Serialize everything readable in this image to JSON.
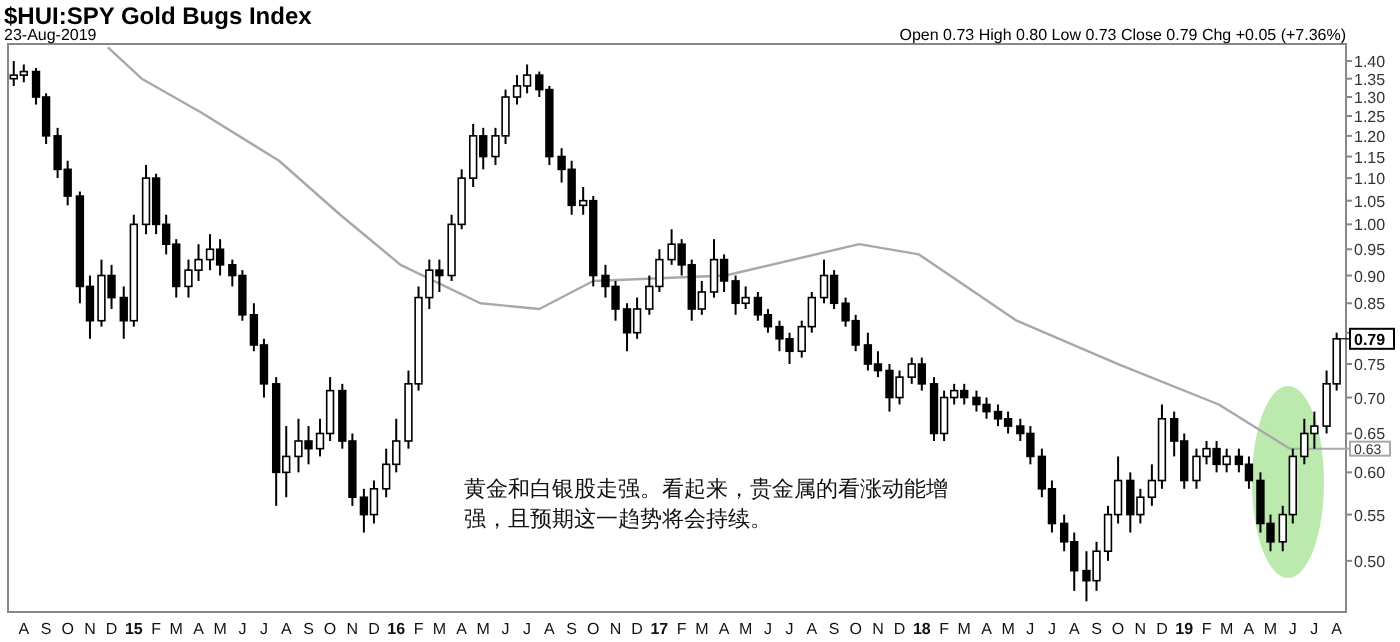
{
  "chart_data": {
    "type": "candlestick",
    "title": "$HUI:SPY Gold Bugs Index",
    "subtitle": "23-Aug-2019",
    "annotations": [
      "Open 0.73 High 0.80 Low 0.73 Close 0.79 Chg +0.05 (+7.36%)",
      "黄金和白银股走强。看起来，贵金属的看涨动能增强，且预期这一趋势将会持续。",
      {
        "text": "0.79",
        "x": "2019-08-15",
        "y": 0.79
      }
    ],
    "log": "y",
    "ylim": [
      0.45,
      1.45
    ],
    "yticks": [
      {
        "value": 0.5,
        "label": "0.50"
      },
      {
        "value": 0.55,
        "label": "0.55"
      },
      {
        "value": 0.6,
        "label": "0.60"
      },
      {
        "value": 0.65,
        "label": "0.65"
      },
      {
        "value": 0.7,
        "label": "0.70"
      },
      {
        "value": 0.75,
        "label": "0.75"
      },
      {
        "value": 0.8,
        "label": null
      },
      {
        "value": 0.85,
        "label": "0.85"
      },
      {
        "value": 0.9,
        "label": "0.90"
      },
      {
        "value": 0.95,
        "label": "0.95"
      },
      {
        "value": 1.0,
        "label": "1.00"
      },
      {
        "value": 1.05,
        "label": "1.05"
      },
      {
        "value": 1.1,
        "label": "1.10"
      },
      {
        "value": 1.15,
        "label": "1.15"
      },
      {
        "value": 1.2,
        "label": "1.20"
      },
      {
        "value": 1.25,
        "label": "1.25"
      },
      {
        "value": 1.3,
        "label": "1.30"
      },
      {
        "value": 1.35,
        "label": "1.35"
      },
      {
        "value": 1.4,
        "label": "1.40"
      }
    ],
    "xlim": [
      "2014-07-24",
      "2019-08-28"
    ],
    "xticks": [
      {
        "value": "2014-08-15",
        "label": "A"
      },
      {
        "value": "2014-09-15",
        "label": "S"
      },
      {
        "value": "2014-10-15",
        "label": "O"
      },
      {
        "value": "2014-11-15",
        "label": "N"
      },
      {
        "value": "2014-12-15",
        "label": "D"
      },
      {
        "value": "2015-01-15",
        "label": "15"
      },
      {
        "value": "2015-02-15",
        "label": "F"
      },
      {
        "value": "2015-03-15",
        "label": "M"
      },
      {
        "value": "2015-04-15",
        "label": "A"
      },
      {
        "value": "2015-05-15",
        "label": "M"
      },
      {
        "value": "2015-06-15",
        "label": "J"
      },
      {
        "value": "2015-07-15",
        "label": "J"
      },
      {
        "value": "2015-08-15",
        "label": "A"
      },
      {
        "value": "2015-09-15",
        "label": "S"
      },
      {
        "value": "2015-10-15",
        "label": "O"
      },
      {
        "value": "2015-11-15",
        "label": "N"
      },
      {
        "value": "2015-12-15",
        "label": "D"
      },
      {
        "value": "2016-01-15",
        "label": "16"
      },
      {
        "value": "2016-02-15",
        "label": "F"
      },
      {
        "value": "2016-03-15",
        "label": "M"
      },
      {
        "value": "2016-04-15",
        "label": "A"
      },
      {
        "value": "2016-05-15",
        "label": "M"
      },
      {
        "value": "2016-06-15",
        "label": "J"
      },
      {
        "value": "2016-07-15",
        "label": "J"
      },
      {
        "value": "2016-08-15",
        "label": "A"
      },
      {
        "value": "2016-09-15",
        "label": "S"
      },
      {
        "value": "2016-10-15",
        "label": "O"
      },
      {
        "value": "2016-11-15",
        "label": "N"
      },
      {
        "value": "2016-12-15",
        "label": "D"
      },
      {
        "value": "2017-01-15",
        "label": "17"
      },
      {
        "value": "2017-02-15",
        "label": "F"
      },
      {
        "value": "2017-03-15",
        "label": "M"
      },
      {
        "value": "2017-04-15",
        "label": "A"
      },
      {
        "value": "2017-05-15",
        "label": "M"
      },
      {
        "value": "2017-06-15",
        "label": "J"
      },
      {
        "value": "2017-07-15",
        "label": "J"
      },
      {
        "value": "2017-08-15",
        "label": "A"
      },
      {
        "value": "2017-09-15",
        "label": "S"
      },
      {
        "value": "2017-10-15",
        "label": "O"
      },
      {
        "value": "2017-11-15",
        "label": "N"
      },
      {
        "value": "2017-12-15",
        "label": "D"
      },
      {
        "value": "2018-01-15",
        "label": "18"
      },
      {
        "value": "2018-02-15",
        "label": "F"
      },
      {
        "value": "2018-03-15",
        "label": "M"
      },
      {
        "value": "2018-04-15",
        "label": "A"
      },
      {
        "value": "2018-05-15",
        "label": "M"
      },
      {
        "value": "2018-06-15",
        "label": "J"
      },
      {
        "value": "2018-07-15",
        "label": "J"
      },
      {
        "value": "2018-08-15",
        "label": "A"
      },
      {
        "value": "2018-09-15",
        "label": "S"
      },
      {
        "value": "2018-10-15",
        "label": "O"
      },
      {
        "value": "2018-11-15",
        "label": "N"
      },
      {
        "value": "2018-12-15",
        "label": "D"
      },
      {
        "value": "2019-01-15",
        "label": "19"
      },
      {
        "value": "2019-02-15",
        "label": "F"
      },
      {
        "value": "2019-03-15",
        "label": "M"
      },
      {
        "value": "2019-04-15",
        "label": "A"
      },
      {
        "value": "2019-05-15",
        "label": "M"
      },
      {
        "value": "2019-06-15",
        "label": "J"
      },
      {
        "value": "2019-07-15",
        "label": "J"
      },
      {
        "value": "2019-08-15",
        "label": "A"
      }
    ],
    "series": [
      {
        "type": "candlestick",
        "color": "#000000",
        "x": [
          "2014-08-01",
          "2014-08-15",
          "2014-09-01",
          "2014-09-15",
          "2014-10-01",
          "2014-10-15",
          "2014-11-01",
          "2014-11-15",
          "2014-12-01",
          "2014-12-15",
          "2015-01-01",
          "2015-01-15",
          "2015-02-01",
          "2015-02-15",
          "2015-03-01",
          "2015-03-15",
          "2015-04-01",
          "2015-04-15",
          "2015-05-01",
          "2015-05-15",
          "2015-06-01",
          "2015-06-15",
          "2015-07-01",
          "2015-07-15",
          "2015-08-01",
          "2015-08-15",
          "2015-09-01",
          "2015-09-15",
          "2015-10-01",
          "2015-10-15",
          "2015-11-01",
          "2015-11-15",
          "2015-12-01",
          "2015-12-15",
          "2016-01-01",
          "2016-01-15",
          "2016-02-01",
          "2016-02-15",
          "2016-03-01",
          "2016-03-15",
          "2016-04-01",
          "2016-04-15",
          "2016-05-01",
          "2016-05-15",
          "2016-06-01",
          "2016-06-15",
          "2016-07-01",
          "2016-07-15",
          "2016-08-01",
          "2016-08-15",
          "2016-09-01",
          "2016-09-15",
          "2016-10-01",
          "2016-10-15",
          "2016-11-01",
          "2016-11-15",
          "2016-12-01",
          "2016-12-15",
          "2017-01-01",
          "2017-01-15",
          "2017-02-01",
          "2017-02-15",
          "2017-03-01",
          "2017-03-15",
          "2017-04-01",
          "2017-04-15",
          "2017-05-01",
          "2017-05-15",
          "2017-06-01",
          "2017-06-15",
          "2017-07-01",
          "2017-07-15",
          "2017-08-01",
          "2017-08-15",
          "2017-09-01",
          "2017-09-15",
          "2017-10-01",
          "2017-10-15",
          "2017-11-01",
          "2017-11-15",
          "2017-12-01",
          "2017-12-15",
          "2018-01-01",
          "2018-01-15",
          "2018-02-01",
          "2018-02-15",
          "2018-03-01",
          "2018-03-15",
          "2018-04-01",
          "2018-04-15",
          "2018-05-01",
          "2018-05-15",
          "2018-06-01",
          "2018-06-15",
          "2018-07-01",
          "2018-07-15",
          "2018-08-01",
          "2018-08-15",
          "2018-09-01",
          "2018-09-15",
          "2018-10-01",
          "2018-10-15",
          "2018-11-01",
          "2018-11-15",
          "2018-12-01",
          "2018-12-15",
          "2019-01-01",
          "2019-01-15",
          "2019-02-01",
          "2019-02-15",
          "2019-03-01",
          "2019-03-15",
          "2019-04-01",
          "2019-04-15",
          "2019-05-01",
          "2019-05-15",
          "2019-06-01",
          "2019-06-15",
          "2019-07-01",
          "2019-07-15",
          "2019-08-01",
          "2019-08-15"
        ],
        "ohlc": [
          [
            1.35,
            1.4,
            1.33,
            1.36
          ],
          [
            1.36,
            1.39,
            1.34,
            1.37
          ],
          [
            1.37,
            1.38,
            1.28,
            1.3
          ],
          [
            1.3,
            1.31,
            1.18,
            1.2
          ],
          [
            1.2,
            1.22,
            1.1,
            1.12
          ],
          [
            1.12,
            1.14,
            1.04,
            1.06
          ],
          [
            1.06,
            1.07,
            0.85,
            0.88
          ],
          [
            0.88,
            0.9,
            0.79,
            0.82
          ],
          [
            0.82,
            0.93,
            0.81,
            0.9
          ],
          [
            0.9,
            0.92,
            0.84,
            0.86
          ],
          [
            0.86,
            0.88,
            0.79,
            0.82
          ],
          [
            0.82,
            1.02,
            0.81,
            1.0
          ],
          [
            1.0,
            1.13,
            0.98,
            1.1
          ],
          [
            1.1,
            1.11,
            0.98,
            1.0
          ],
          [
            1.0,
            1.02,
            0.94,
            0.96
          ],
          [
            0.96,
            0.97,
            0.86,
            0.88
          ],
          [
            0.88,
            0.93,
            0.86,
            0.91
          ],
          [
            0.91,
            0.96,
            0.89,
            0.93
          ],
          [
            0.93,
            0.98,
            0.91,
            0.95
          ],
          [
            0.95,
            0.97,
            0.9,
            0.92
          ],
          [
            0.92,
            0.93,
            0.88,
            0.9
          ],
          [
            0.9,
            0.91,
            0.82,
            0.83
          ],
          [
            0.83,
            0.85,
            0.77,
            0.78
          ],
          [
            0.78,
            0.79,
            0.7,
            0.72
          ],
          [
            0.72,
            0.73,
            0.56,
            0.6
          ],
          [
            0.6,
            0.66,
            0.57,
            0.62
          ],
          [
            0.62,
            0.67,
            0.6,
            0.64
          ],
          [
            0.64,
            0.66,
            0.61,
            0.63
          ],
          [
            0.63,
            0.67,
            0.62,
            0.65
          ],
          [
            0.65,
            0.73,
            0.64,
            0.71
          ],
          [
            0.71,
            0.72,
            0.63,
            0.64
          ],
          [
            0.64,
            0.65,
            0.56,
            0.57
          ],
          [
            0.57,
            0.58,
            0.53,
            0.55
          ],
          [
            0.55,
            0.59,
            0.54,
            0.58
          ],
          [
            0.58,
            0.63,
            0.57,
            0.61
          ],
          [
            0.61,
            0.67,
            0.6,
            0.64
          ],
          [
            0.64,
            0.74,
            0.63,
            0.72
          ],
          [
            0.72,
            0.88,
            0.71,
            0.86
          ],
          [
            0.86,
            0.93,
            0.84,
            0.91
          ],
          [
            0.91,
            0.93,
            0.87,
            0.9
          ],
          [
            0.9,
            1.02,
            0.89,
            1.0
          ],
          [
            1.0,
            1.12,
            0.99,
            1.1
          ],
          [
            1.1,
            1.23,
            1.08,
            1.2
          ],
          [
            1.2,
            1.22,
            1.12,
            1.15
          ],
          [
            1.15,
            1.22,
            1.13,
            1.2
          ],
          [
            1.2,
            1.32,
            1.18,
            1.3
          ],
          [
            1.3,
            1.36,
            1.28,
            1.33
          ],
          [
            1.33,
            1.39,
            1.31,
            1.36
          ],
          [
            1.36,
            1.37,
            1.3,
            1.32
          ],
          [
            1.32,
            1.33,
            1.13,
            1.15
          ],
          [
            1.15,
            1.17,
            1.09,
            1.12
          ],
          [
            1.12,
            1.14,
            1.02,
            1.04
          ],
          [
            1.04,
            1.08,
            1.02,
            1.05
          ],
          [
            1.05,
            1.06,
            0.88,
            0.9
          ],
          [
            0.9,
            0.92,
            0.86,
            0.88
          ],
          [
            0.88,
            0.89,
            0.82,
            0.84
          ],
          [
            0.84,
            0.85,
            0.77,
            0.8
          ],
          [
            0.8,
            0.86,
            0.79,
            0.84
          ],
          [
            0.84,
            0.9,
            0.83,
            0.88
          ],
          [
            0.88,
            0.95,
            0.87,
            0.93
          ],
          [
            0.93,
            0.99,
            0.92,
            0.96
          ],
          [
            0.96,
            0.97,
            0.9,
            0.92
          ],
          [
            0.92,
            0.93,
            0.82,
            0.84
          ],
          [
            0.84,
            0.89,
            0.83,
            0.87
          ],
          [
            0.87,
            0.97,
            0.86,
            0.93
          ],
          [
            0.93,
            0.94,
            0.87,
            0.89
          ],
          [
            0.89,
            0.9,
            0.83,
            0.85
          ],
          [
            0.85,
            0.88,
            0.84,
            0.86
          ],
          [
            0.86,
            0.87,
            0.82,
            0.83
          ],
          [
            0.83,
            0.84,
            0.8,
            0.81
          ],
          [
            0.81,
            0.82,
            0.77,
            0.79
          ],
          [
            0.79,
            0.8,
            0.75,
            0.77
          ],
          [
            0.77,
            0.82,
            0.76,
            0.81
          ],
          [
            0.81,
            0.87,
            0.8,
            0.86
          ],
          [
            0.86,
            0.93,
            0.85,
            0.9
          ],
          [
            0.9,
            0.91,
            0.84,
            0.85
          ],
          [
            0.85,
            0.86,
            0.81,
            0.82
          ],
          [
            0.82,
            0.83,
            0.77,
            0.78
          ],
          [
            0.78,
            0.8,
            0.74,
            0.75
          ],
          [
            0.75,
            0.77,
            0.73,
            0.74
          ],
          [
            0.74,
            0.75,
            0.68,
            0.7
          ],
          [
            0.7,
            0.74,
            0.69,
            0.73
          ],
          [
            0.73,
            0.76,
            0.72,
            0.75
          ],
          [
            0.75,
            0.76,
            0.71,
            0.72
          ],
          [
            0.72,
            0.73,
            0.64,
            0.65
          ],
          [
            0.65,
            0.71,
            0.64,
            0.7
          ],
          [
            0.7,
            0.72,
            0.69,
            0.71
          ],
          [
            0.71,
            0.72,
            0.69,
            0.7
          ],
          [
            0.7,
            0.71,
            0.68,
            0.69
          ],
          [
            0.69,
            0.7,
            0.67,
            0.68
          ],
          [
            0.68,
            0.69,
            0.66,
            0.67
          ],
          [
            0.67,
            0.68,
            0.65,
            0.66
          ],
          [
            0.66,
            0.67,
            0.64,
            0.65
          ],
          [
            0.65,
            0.66,
            0.61,
            0.62
          ],
          [
            0.62,
            0.63,
            0.57,
            0.58
          ],
          [
            0.58,
            0.59,
            0.53,
            0.54
          ],
          [
            0.54,
            0.55,
            0.51,
            0.52
          ],
          [
            0.52,
            0.53,
            0.47,
            0.49
          ],
          [
            0.49,
            0.51,
            0.46,
            0.48
          ],
          [
            0.48,
            0.52,
            0.47,
            0.51
          ],
          [
            0.51,
            0.56,
            0.5,
            0.55
          ],
          [
            0.55,
            0.62,
            0.54,
            0.59
          ],
          [
            0.59,
            0.6,
            0.53,
            0.55
          ],
          [
            0.55,
            0.58,
            0.54,
            0.57
          ],
          [
            0.57,
            0.61,
            0.56,
            0.59
          ],
          [
            0.59,
            0.69,
            0.58,
            0.67
          ],
          [
            0.67,
            0.68,
            0.62,
            0.64
          ],
          [
            0.64,
            0.65,
            0.58,
            0.59
          ],
          [
            0.59,
            0.63,
            0.58,
            0.62
          ],
          [
            0.62,
            0.64,
            0.61,
            0.63
          ],
          [
            0.63,
            0.64,
            0.6,
            0.61
          ],
          [
            0.61,
            0.63,
            0.6,
            0.62
          ],
          [
            0.62,
            0.63,
            0.6,
            0.61
          ],
          [
            0.61,
            0.62,
            0.58,
            0.59
          ],
          [
            0.59,
            0.6,
            0.53,
            0.54
          ],
          [
            0.54,
            0.55,
            0.51,
            0.52
          ],
          [
            0.52,
            0.56,
            0.51,
            0.55
          ],
          [
            0.55,
            0.63,
            0.54,
            0.62
          ],
          [
            0.62,
            0.67,
            0.61,
            0.65
          ],
          [
            0.65,
            0.68,
            0.63,
            0.66
          ],
          [
            0.66,
            0.74,
            0.65,
            0.72
          ],
          [
            0.72,
            0.8,
            0.71,
            0.79
          ]
        ]
      },
      {
        "type": "line",
        "color": "#a8a8a8",
        "x": [
          "2014-12-10",
          "2015-01-26",
          "2015-04-18",
          "2015-08-05",
          "2015-10-29",
          "2016-01-21",
          "2016-05-11",
          "2016-08-01",
          "2016-10-15",
          "2017-04-17",
          "2017-10-20",
          "2018-01-11",
          "2018-05-27",
          "2018-10-15",
          "2019-03-04",
          "2019-06-11"
        ],
        "values": [
          1.44,
          1.35,
          1.26,
          1.14,
          1.02,
          0.92,
          0.85,
          0.84,
          0.89,
          0.9,
          0.96,
          0.94,
          0.82,
          0.75,
          0.69,
          0.63
        ],
        "value_labels": [
          null,
          null,
          null,
          null,
          null,
          null,
          null,
          null,
          null,
          null,
          null,
          null,
          null,
          null,
          null,
          "0.63"
        ]
      }
    ]
  }
}
